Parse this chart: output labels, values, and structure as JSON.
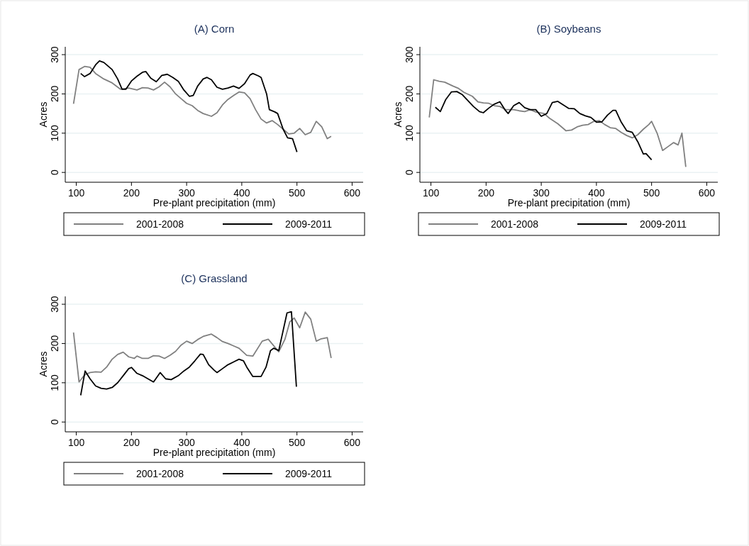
{
  "chart_data": [
    {
      "type": "line",
      "title": "(A) Corn",
      "xlabel": "Pre-plant precipitation (mm)",
      "ylabel": "Acres",
      "xlim": [
        80,
        620
      ],
      "ylim": [
        -25,
        320
      ],
      "xticks": [
        100,
        200,
        300,
        400,
        500,
        600
      ],
      "yticks": [
        0,
        100,
        200,
        300
      ],
      "grid": "y",
      "legend": "bottom",
      "series": [
        {
          "name": "2001-2008",
          "color": "#808080",
          "x": [
            95,
            105,
            115,
            125,
            135,
            150,
            165,
            180,
            195,
            210,
            220,
            230,
            240,
            250,
            260,
            270,
            280,
            290,
            300,
            310,
            320,
            330,
            345,
            355,
            365,
            375,
            385,
            395,
            405,
            415,
            425,
            435,
            445,
            455,
            465,
            475,
            485,
            495,
            505,
            515,
            525,
            535,
            545,
            555,
            562
          ],
          "values": [
            175,
            262,
            270,
            268,
            252,
            238,
            228,
            212,
            215,
            210,
            216,
            215,
            210,
            218,
            230,
            218,
            200,
            188,
            176,
            170,
            158,
            150,
            143,
            152,
            172,
            186,
            196,
            205,
            203,
            188,
            160,
            136,
            126,
            132,
            122,
            110,
            98,
            100,
            112,
            96,
            102,
            130,
            116,
            86,
            92
          ]
        },
        {
          "name": "2009-2011",
          "color": "#000000",
          "x": [
            108,
            115,
            125,
            135,
            142,
            150,
            165,
            175,
            183,
            190,
            200,
            210,
            220,
            226,
            235,
            245,
            255,
            265,
            275,
            285,
            295,
            305,
            312,
            320,
            330,
            337,
            345,
            355,
            365,
            375,
            385,
            395,
            405,
            415,
            420,
            430,
            435,
            445,
            450,
            460,
            465,
            475,
            483,
            492,
            500
          ],
          "values": [
            252,
            244,
            252,
            274,
            284,
            280,
            262,
            238,
            212,
            212,
            233,
            245,
            255,
            257,
            240,
            231,
            247,
            250,
            242,
            232,
            210,
            194,
            196,
            220,
            238,
            242,
            236,
            217,
            212,
            215,
            220,
            214,
            226,
            248,
            252,
            246,
            242,
            200,
            160,
            154,
            150,
            110,
            88,
            86,
            52
          ]
        }
      ]
    },
    {
      "type": "line",
      "title": "(B) Soybeans",
      "xlabel": "Pre-plant precipitation (mm)",
      "ylabel": "Acres",
      "xlim": [
        80,
        620
      ],
      "ylim": [
        -25,
        320
      ],
      "xticks": [
        100,
        200,
        300,
        400,
        500,
        600
      ],
      "yticks": [
        0,
        100,
        200,
        300
      ],
      "grid": "y",
      "legend": "bottom",
      "series": [
        {
          "name": "2001-2008",
          "color": "#808080",
          "x": [
            97,
            105,
            115,
            125,
            140,
            150,
            160,
            175,
            185,
            195,
            205,
            215,
            225,
            235,
            250,
            260,
            270,
            280,
            290,
            305,
            315,
            330,
            345,
            355,
            365,
            375,
            385,
            395,
            405,
            415,
            425,
            435,
            445,
            455,
            465,
            475,
            485,
            495,
            500,
            510,
            520,
            530,
            540,
            548,
            555,
            562
          ],
          "values": [
            140,
            236,
            232,
            230,
            220,
            214,
            204,
            194,
            180,
            177,
            176,
            170,
            168,
            160,
            160,
            157,
            155,
            160,
            154,
            150,
            138,
            124,
            106,
            108,
            116,
            120,
            122,
            130,
            132,
            122,
            114,
            112,
            102,
            94,
            88,
            96,
            110,
            122,
            130,
            100,
            56,
            66,
            76,
            70,
            100,
            14
          ]
        },
        {
          "name": "2009-2011",
          "color": "#000000",
          "x": [
            108,
            117,
            127,
            137,
            147,
            157,
            167,
            177,
            188,
            195,
            205,
            215,
            225,
            235,
            240,
            250,
            260,
            270,
            280,
            290,
            300,
            310,
            320,
            330,
            340,
            350,
            360,
            370,
            380,
            390,
            400,
            410,
            420,
            430,
            435,
            445,
            455,
            465,
            475,
            485,
            490,
            500
          ],
          "values": [
            166,
            155,
            186,
            205,
            206,
            198,
            183,
            168,
            155,
            152,
            164,
            174,
            180,
            158,
            150,
            170,
            178,
            165,
            160,
            160,
            143,
            150,
            178,
            181,
            172,
            163,
            162,
            150,
            144,
            140,
            128,
            129,
            146,
            158,
            158,
            128,
            106,
            102,
            78,
            47,
            48,
            32
          ]
        }
      ]
    },
    {
      "type": "line",
      "title": "(C) Grassland",
      "xlabel": "Pre-plant precipitation (mm)",
      "ylabel": "Acres",
      "xlim": [
        80,
        620
      ],
      "ylim": [
        -25,
        320
      ],
      "xticks": [
        100,
        200,
        300,
        400,
        500,
        600
      ],
      "yticks": [
        0,
        100,
        200,
        300
      ],
      "grid": "y",
      "legend": "bottom",
      "series": [
        {
          "name": "2001-2008",
          "color": "#808080",
          "x": [
            95,
            105,
            115,
            125,
            135,
            145,
            155,
            165,
            175,
            185,
            195,
            205,
            210,
            220,
            230,
            240,
            250,
            260,
            270,
            280,
            290,
            300,
            310,
            320,
            330,
            345,
            355,
            365,
            375,
            385,
            395,
            409,
            420,
            437,
            448,
            467,
            478,
            487,
            495,
            505,
            515,
            525,
            535,
            544,
            555,
            562
          ],
          "values": [
            228,
            102,
            120,
            126,
            128,
            127,
            140,
            160,
            172,
            178,
            166,
            162,
            168,
            162,
            162,
            169,
            168,
            162,
            170,
            180,
            196,
            206,
            200,
            210,
            218,
            224,
            215,
            205,
            200,
            194,
            188,
            170,
            168,
            206,
            211,
            179,
            210,
            255,
            265,
            240,
            280,
            262,
            206,
            212,
            215,
            163
          ]
        },
        {
          "name": "2009-2011",
          "color": "#000000",
          "x": [
            108,
            116,
            125,
            135,
            145,
            155,
            165,
            175,
            185,
            195,
            200,
            210,
            220,
            230,
            240,
            252,
            262,
            272,
            285,
            295,
            305,
            315,
            325,
            330,
            340,
            350,
            355,
            365,
            375,
            385,
            395,
            403,
            409,
            420,
            435,
            444,
            452,
            458,
            467,
            482,
            490,
            499
          ],
          "values": [
            68,
            130,
            110,
            92,
            86,
            84,
            88,
            100,
            118,
            136,
            139,
            124,
            118,
            110,
            102,
            126,
            110,
            108,
            118,
            130,
            140,
            156,
            173,
            172,
            146,
            132,
            126,
            136,
            146,
            153,
            160,
            156,
            140,
            116,
            116,
            140,
            182,
            188,
            182,
            278,
            281,
            90
          ]
        }
      ]
    }
  ]
}
